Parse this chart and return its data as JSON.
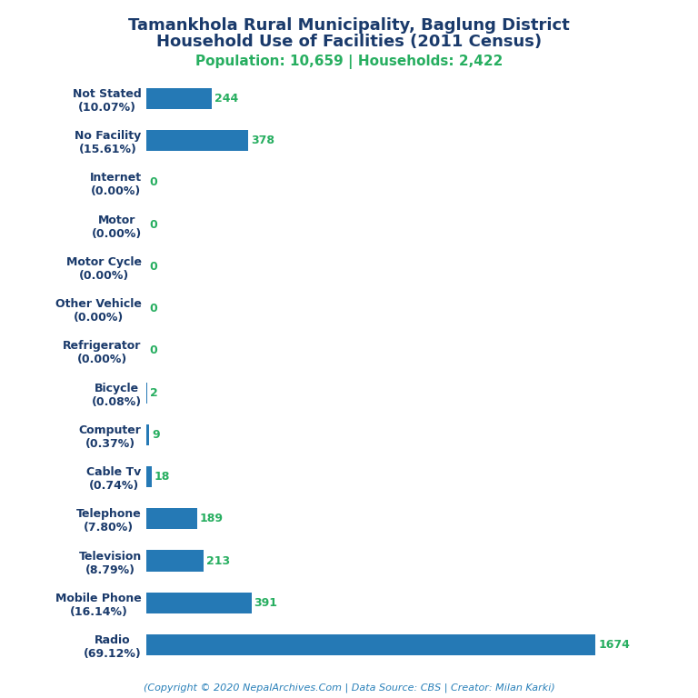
{
  "title_line1": "Tamankhola Rural Municipality, Baglung District",
  "title_line2": "Household Use of Facilities (2011 Census)",
  "subtitle": "Population: 10,659 | Households: 2,422",
  "footer": "(Copyright © 2020 NepalArchives.Com | Data Source: CBS | Creator: Milan Karki)",
  "categories": [
    "Radio\n(69.12%)",
    "Mobile Phone\n(16.14%)",
    "Television\n(8.79%)",
    "Telephone\n(7.80%)",
    "Cable Tv\n(0.74%)",
    "Computer\n(0.37%)",
    "Bicycle\n(0.08%)",
    "Refrigerator\n(0.00%)",
    "Other Vehicle\n(0.00%)",
    "Motor Cycle\n(0.00%)",
    "Motor\n(0.00%)",
    "Internet\n(0.00%)",
    "No Facility\n(15.61%)",
    "Not Stated\n(10.07%)"
  ],
  "values": [
    1674,
    391,
    213,
    189,
    18,
    9,
    2,
    0,
    0,
    0,
    0,
    0,
    378,
    244
  ],
  "bar_color": "#2579B5",
  "value_color": "#27AE60",
  "title_color": "#1A3A6B",
  "subtitle_color": "#27AE60",
  "footer_color": "#2980B9",
  "background_color": "#FFFFFF",
  "xlim": [
    0,
    1900
  ],
  "title_fontsize": 13,
  "subtitle_fontsize": 11,
  "label_fontsize": 9,
  "value_fontsize": 9,
  "footer_fontsize": 8
}
